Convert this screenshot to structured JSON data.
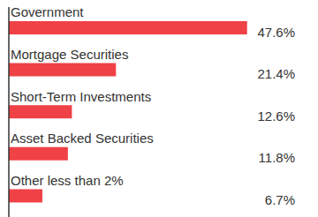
{
  "chart_data": {
    "type": "bar",
    "orientation": "horizontal",
    "categories": [
      "Government",
      "Mortgage Securities",
      "Short-Term Investments",
      "Asset Backed Securities",
      "Other less than 2%"
    ],
    "values": [
      47.6,
      21.4,
      12.6,
      11.8,
      6.7
    ],
    "value_labels": [
      "47.6%",
      "21.4%",
      "12.6%",
      "11.8%",
      "6.7%"
    ],
    "color": "#ef4146",
    "xlim": [
      0,
      60
    ],
    "data_labels": true,
    "tick_labels": "y"
  }
}
